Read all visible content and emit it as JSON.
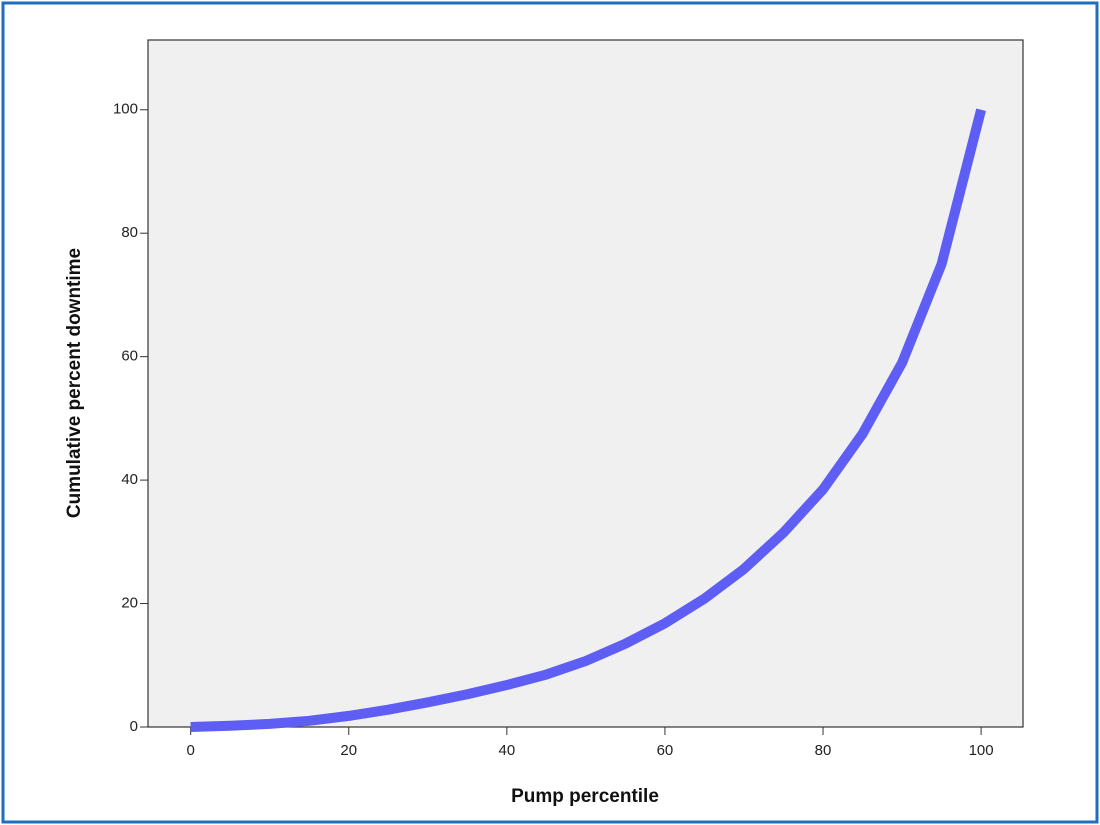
{
  "chart_data": {
    "type": "line",
    "x_label": "Pump percentile",
    "y_label": "Cumulative percent downtime",
    "x": [
      0,
      5,
      10,
      15,
      20,
      25,
      30,
      35,
      40,
      45,
      50,
      55,
      60,
      65,
      70,
      75,
      80,
      85,
      90,
      95,
      100
    ],
    "values": [
      0,
      0.2,
      0.5,
      1.0,
      1.8,
      2.8,
      4.0,
      5.3,
      6.8,
      8.5,
      10.7,
      13.5,
      16.8,
      20.8,
      25.6,
      31.5,
      38.5,
      47.5,
      59,
      75,
      100
    ],
    "color": "#5e5ef5",
    "xlim": [
      -5.4,
      105.3
    ],
    "xticks": [
      0,
      20,
      40,
      60,
      80,
      100
    ],
    "ylim": [
      0,
      111.3
    ],
    "yticks": [
      0,
      20,
      40,
      60,
      80,
      100
    ],
    "grid": false
  }
}
